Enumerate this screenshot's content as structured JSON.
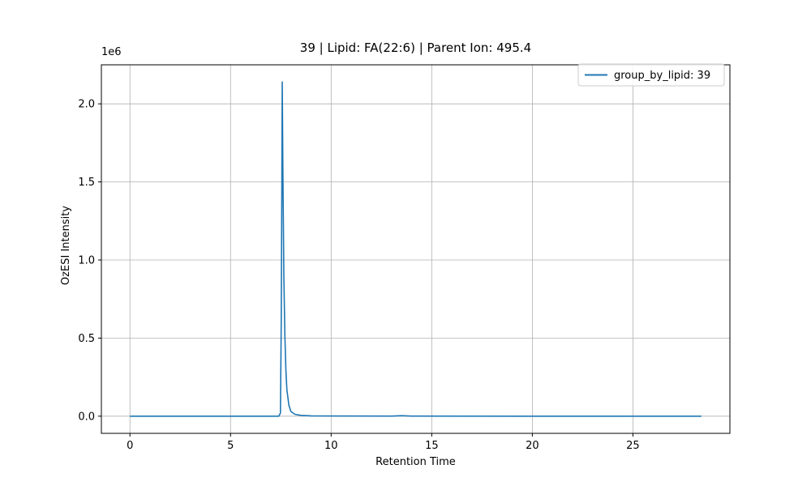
{
  "chart_data": {
    "type": "line",
    "title": "39 | Lipid: FA(22:6) | Parent Ion: 495.4",
    "xlabel": "Retention Time",
    "ylabel": "OzESI Intensity",
    "y_offset_label": "1e6",
    "xlim": [
      -1.42,
      29.82
    ],
    "ylim": [
      -110000,
      2250000
    ],
    "x_ticks": [
      0,
      5,
      10,
      15,
      20,
      25
    ],
    "x_tick_labels": [
      "0",
      "5",
      "10",
      "15",
      "20",
      "25"
    ],
    "y_ticks": [
      0,
      500000,
      1000000,
      1500000,
      2000000
    ],
    "y_tick_labels": [
      "0.0",
      "0.5",
      "1.0",
      "1.5",
      "2.0"
    ],
    "grid": true,
    "legend_position": "top-right",
    "series": [
      {
        "name": "group_by_lipid: 39",
        "color": "#1f77b4",
        "x": [
          0,
          7.4,
          7.48,
          7.52,
          7.55,
          7.57,
          7.6,
          7.65,
          7.7,
          7.75,
          7.8,
          7.9,
          8.0,
          8.2,
          8.5,
          9.0,
          10.0,
          13.0,
          13.5,
          14.0,
          20.0,
          28.4
        ],
        "y": [
          0,
          0,
          20000,
          600000,
          1500000,
          2140000,
          1600000,
          900000,
          520000,
          300000,
          170000,
          70000,
          30000,
          12000,
          5000,
          2000,
          1000,
          500,
          3000,
          500,
          0,
          0
        ]
      }
    ]
  }
}
